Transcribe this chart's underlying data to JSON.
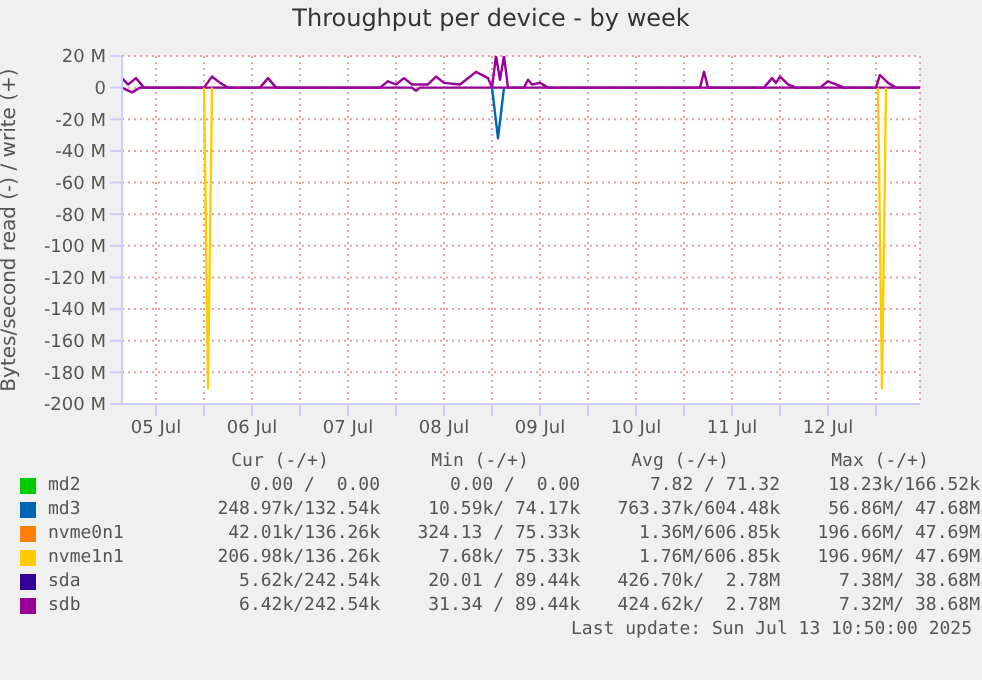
{
  "chart_data": {
    "type": "line",
    "title": "Throughput per device - by week",
    "ylabel": "Bytes/second read (-) / write (+)",
    "xlim": [
      "2025-07-05T03:30",
      "2025-07-13T11:00"
    ],
    "xticks": [
      {
        "value": "2025-07-05T12:00",
        "label": "05 Jul"
      },
      {
        "value": "2025-07-06T00:00",
        "label": null
      },
      {
        "value": "2025-07-06T12:00",
        "label": "06 Jul"
      },
      {
        "value": "2025-07-07T00:00",
        "label": null
      },
      {
        "value": "2025-07-07T12:00",
        "label": "07 Jul"
      },
      {
        "value": "2025-07-08T00:00",
        "label": null
      },
      {
        "value": "2025-07-08T12:00",
        "label": "08 Jul"
      },
      {
        "value": "2025-07-09T00:00",
        "label": null
      },
      {
        "value": "2025-07-09T12:00",
        "label": "09 Jul"
      },
      {
        "value": "2025-07-10T00:00",
        "label": null
      },
      {
        "value": "2025-07-10T12:00",
        "label": "10 Jul"
      },
      {
        "value": "2025-07-11T00:00",
        "label": null
      },
      {
        "value": "2025-07-11T12:00",
        "label": "11 Jul"
      },
      {
        "value": "2025-07-12T00:00",
        "label": null
      },
      {
        "value": "2025-07-12T12:00",
        "label": "12 Jul"
      },
      {
        "value": "2025-07-13T00:00",
        "label": null
      }
    ],
    "ylim": [
      -200,
      20
    ],
    "yticks": [
      {
        "value": 20,
        "label": "20 M"
      },
      0,
      {
        "value": -20,
        "label": "-20 M"
      },
      {
        "value": -40,
        "label": "-40 M"
      },
      {
        "value": -60,
        "label": "-60 M"
      },
      {
        "value": -80,
        "label": "-80 M"
      },
      {
        "value": -100,
        "label": "-100 M"
      },
      {
        "value": -120,
        "label": "-120 M"
      },
      {
        "value": -140,
        "label": "-140 M"
      },
      {
        "value": -160,
        "label": "-160 M"
      },
      {
        "value": -180,
        "label": "-180 M"
      },
      {
        "value": -200,
        "label": "-200 M"
      }
    ],
    "grid": true,
    "legend": "bottom",
    "line_style": "solid",
    "series": [
      {
        "name": "md2",
        "color": "#00cc00"
      },
      {
        "name": "md3",
        "color": "#0066b3"
      },
      {
        "color": "#0066b3",
        "x": [
          "2025-07-09T00:00",
          "2025-07-09T01:30",
          "2025-07-09T03:00"
        ],
        "values": [
          0,
          -32,
          0
        ]
      },
      {
        "name": "nvme0n1",
        "color": "#ff8000"
      },
      {
        "name": "nvme1n1",
        "color": "#ffcc00"
      },
      {
        "color": "#ffcc00",
        "x": [
          "2025-07-06T00:00",
          "2025-07-06T01:00",
          "2025-07-06T02:00",
          "2025-07-08T00:00",
          "2025-07-13T00:30",
          "2025-07-13T01:30",
          "2025-07-13T02:30"
        ],
        "values": [
          0,
          -190,
          0,
          null,
          0,
          -190,
          0
        ]
      },
      {
        "name": "sda",
        "color": "#330099"
      },
      {
        "name": "sdb",
        "color": "#990099",
        "x": [
          "2025-07-05T03:30",
          "2025-07-05T05:00",
          "2025-07-05T07:00",
          "2025-07-05T09:00",
          "2025-07-06T00:00",
          "2025-07-06T02:00",
          "2025-07-06T04:00",
          "2025-07-06T06:00",
          "2025-07-06T14:00",
          "2025-07-06T16:00",
          "2025-07-06T18:00",
          "2025-07-07T20:00",
          "2025-07-07T22:00",
          "2025-07-08T00:00",
          "2025-07-08T02:00",
          "2025-07-08T04:00",
          "2025-07-08T08:00",
          "2025-07-08T10:00",
          "2025-07-08T12:00",
          "2025-07-08T16:00",
          "2025-07-08T20:00",
          "2025-07-08T23:00",
          "2025-07-09T00:00",
          "2025-07-09T01:00",
          "2025-07-09T02:00",
          "2025-07-09T03:00",
          "2025-07-09T04:00",
          "2025-07-09T08:00",
          "2025-07-09T09:00",
          "2025-07-09T10:00",
          "2025-07-09T12:00",
          "2025-07-09T14:00",
          "2025-07-11T04:00",
          "2025-07-11T05:00",
          "2025-07-11T06:00",
          "2025-07-11T20:00",
          "2025-07-11T22:00",
          "2025-07-11T23:00",
          "2025-07-12T00:00",
          "2025-07-12T02:00",
          "2025-07-12T04:00",
          "2025-07-12T10:00",
          "2025-07-12T12:00",
          "2025-07-12T14:00",
          "2025-07-12T16:00",
          "2025-07-13T00:00",
          "2025-07-13T01:00",
          "2025-07-13T03:00",
          "2025-07-13T05:00",
          "2025-07-13T11:00"
        ],
        "values": [
          6,
          2,
          6,
          0,
          0,
          7,
          3,
          0,
          0,
          6,
          0,
          0,
          4,
          2,
          6,
          2,
          2,
          7,
          3,
          2,
          10,
          6,
          0,
          20,
          5,
          20,
          0,
          0,
          5,
          2,
          3,
          0,
          0,
          10,
          0,
          0,
          6,
          3,
          7,
          2,
          0,
          0,
          4,
          2,
          0,
          0,
          8,
          3,
          0,
          0
        ]
      },
      {
        "color": "#990099",
        "x": [
          "2025-07-05T03:30",
          "2025-07-05T06:00",
          "2025-07-05T08:00",
          "2025-07-08T04:00",
          "2025-07-08T05:00",
          "2025-07-08T06:00",
          "2025-07-13T11:00"
        ],
        "values": [
          0,
          -3,
          0,
          0,
          -2,
          0,
          0
        ]
      }
    ],
    "annotations": [
      "Cur (-/+)",
      "Min (-/+)",
      "Avg (-/+)",
      "Max (-/+)",
      "0.00 /  0.00",
      "0.00 /  0.00",
      "7.82 / 71.32",
      "18.23k/166.52k",
      "248.97k/132.54k",
      "10.59k/ 74.17k",
      "763.37k/604.48k",
      "56.86M/ 47.68M",
      "42.01k/136.26k",
      "324.13 / 75.33k",
      "1.36M/606.85k",
      "196.66M/ 47.69M",
      "206.98k/136.26k",
      "7.68k/ 75.33k",
      "1.76M/606.85k",
      "196.96M/ 47.69M",
      "5.62k/242.54k",
      "20.01 / 89.44k",
      "426.70k/  2.78M",
      "7.38M/ 38.68M",
      "6.42k/242.54k",
      "31.34 / 89.44k",
      "424.62k/  2.78M",
      "7.32M/ 38.68M",
      "Last update: Sun Jul 13 10:50:00 2025"
    ]
  }
}
